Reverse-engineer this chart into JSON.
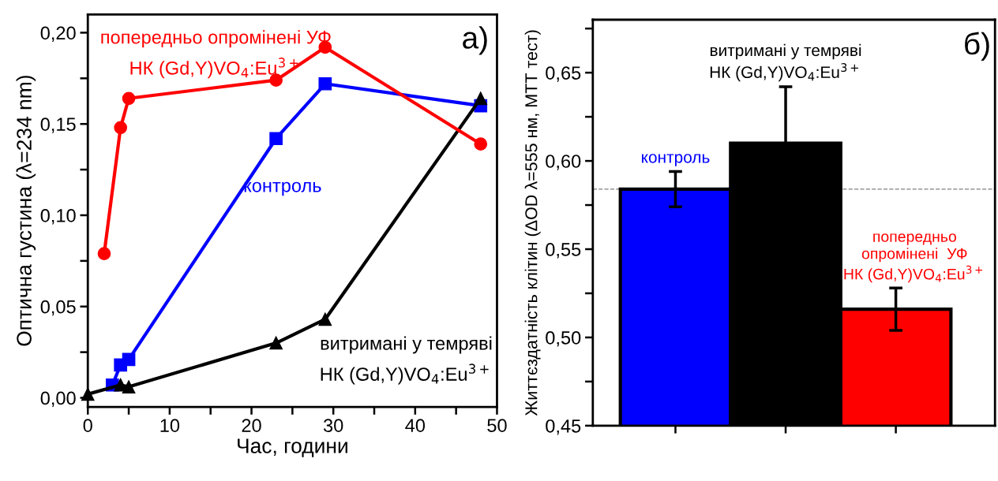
{
  "chart_data": [
    {
      "type": "line",
      "xlabel": "Час, години",
      "ylabel": "Оптична густина (λ=234 nm)",
      "xlim": [
        0,
        50
      ],
      "ylim": [
        -0.005,
        0.21
      ],
      "xticks": [
        0,
        {
          "value": 5,
          "label": null
        },
        10,
        {
          "value": 15,
          "label": null
        },
        20,
        {
          "value": 25,
          "label": null
        },
        30,
        {
          "value": 35,
          "label": null
        },
        40,
        {
          "value": 45,
          "label": null
        },
        50
      ],
      "yticks": [
        {
          "value": 0,
          "label": "0,00"
        },
        {
          "value": 0.025,
          "label": null
        },
        {
          "value": 0.05,
          "label": "0,05"
        },
        {
          "value": 0.075,
          "label": null
        },
        {
          "value": 0.1,
          "label": "0,10"
        },
        {
          "value": 0.125,
          "label": null
        },
        {
          "value": 0.15,
          "label": "0,15"
        },
        {
          "value": 0.175,
          "label": null
        },
        {
          "value": 0.2,
          "label": "0,20"
        }
      ],
      "grid": false,
      "legend": false,
      "series": [
        {
          "name": "попередньо опромінені УФ\nНК (Gd,Y)VO$_{4}$:Eu$^{3+}$",
          "color": "#ff0000",
          "marker": "circle",
          "x": [
            2,
            4,
            5,
            23,
            29,
            48
          ],
          "values": [
            0.079,
            0.148,
            0.164,
            0.174,
            0.192,
            0.139
          ]
        },
        {
          "name": "контроль",
          "color": "#0000ff",
          "marker": "square",
          "x": [
            3,
            4,
            5,
            23,
            29,
            48
          ],
          "values": [
            0.007,
            0.018,
            0.021,
            0.142,
            0.172,
            0.16
          ]
        },
        {
          "name": "витримані у темряві\nНК (Gd,Y)VO$_{4}$:Eu$^{3+}$",
          "color": "#000000",
          "marker": "triangle",
          "x": [
            0,
            4,
            5,
            23,
            29,
            48
          ],
          "values": [
            0.002,
            0.007,
            0.006,
            0.03,
            0.043,
            0.164
          ]
        }
      ],
      "annotations": [
        "а)"
      ]
    },
    {
      "type": "bar",
      "ylabel": "Життєздатність клітин (ΔOD λ=555 нм, МТТ тест)",
      "categories": [
        null,
        null,
        null
      ],
      "values": [
        0.584,
        0.61,
        0.516
      ],
      "errors": [
        0.01,
        0.032,
        0.012
      ],
      "colors": [
        "#0000ff",
        "#000000",
        "#ff0000"
      ],
      "ylim": [
        0.45,
        0.68
      ],
      "yticks": [
        {
          "value": 0.45,
          "label": "0,45"
        },
        {
          "value": 0.475,
          "label": null
        },
        {
          "value": 0.5,
          "label": "0,50"
        },
        {
          "value": 0.525,
          "label": null
        },
        {
          "value": 0.55,
          "label": "0,55"
        },
        {
          "value": 0.575,
          "label": null
        },
        {
          "value": 0.6,
          "label": "0,60"
        },
        {
          "value": 0.625,
          "label": null
        },
        {
          "value": 0.65,
          "label": "0,65"
        },
        {
          "value": 0.675,
          "label": null
        }
      ],
      "ref_lines": [
        {
          "axis": "y",
          "value": 0.584,
          "color": "#808080",
          "line_style": "dashed"
        }
      ],
      "grid": false,
      "annotations": [
        "контроль",
        "витримані у темряві\nНК (Gd,Y)VO$_{4}$:Eu$^{3+}$",
        "попередньо\nопромінені  УФ\nНК (Gd,Y)VO$_{4}$:Eu$^{3+}$",
        "б)"
      ]
    }
  ]
}
